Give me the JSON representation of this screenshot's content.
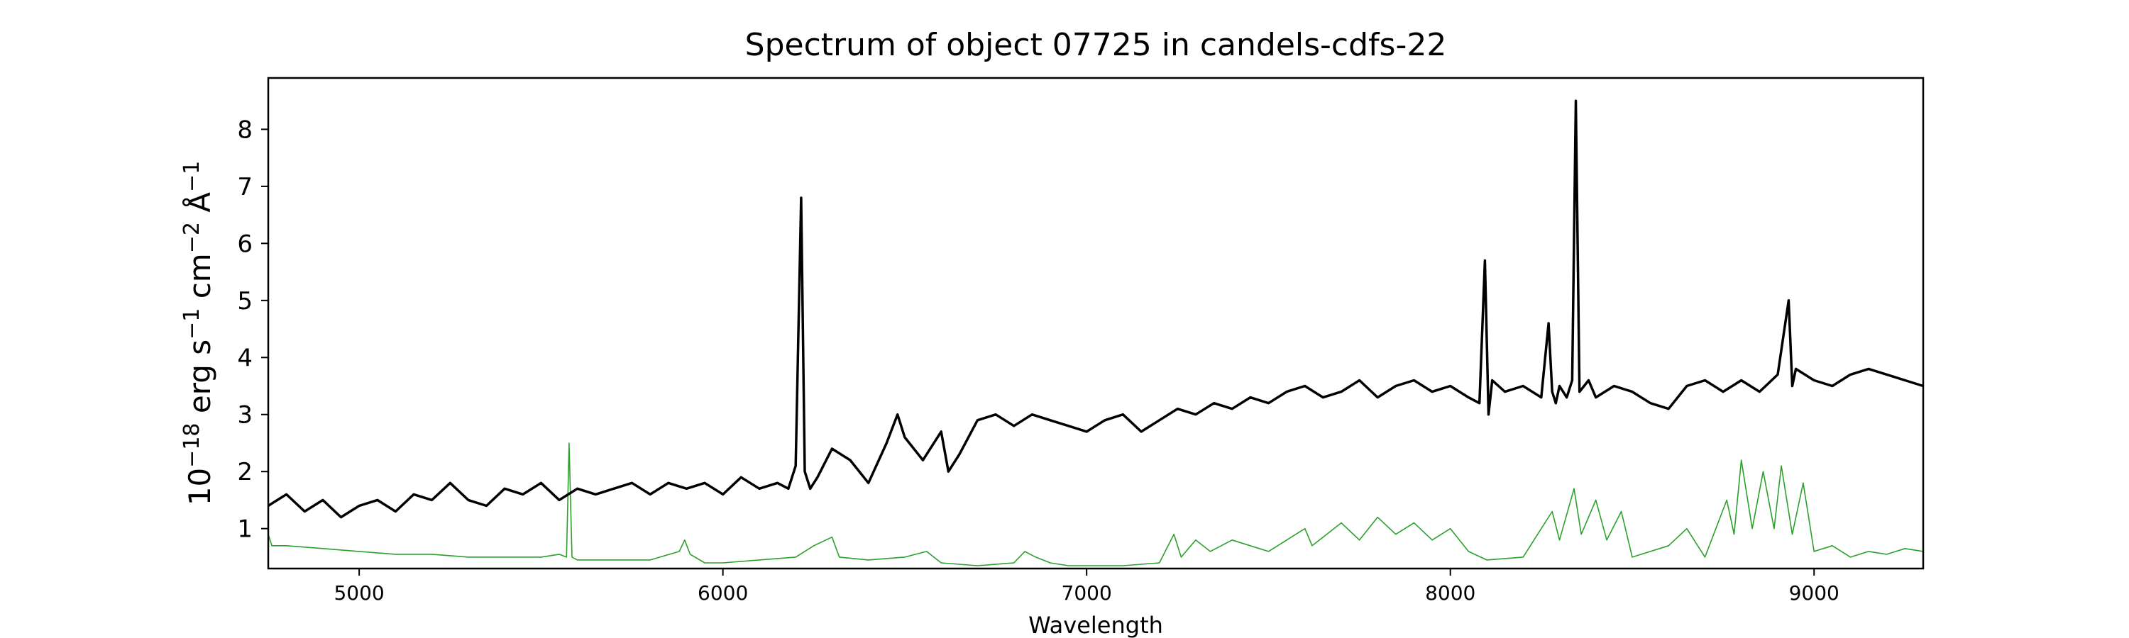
{
  "chart_data": {
    "type": "line",
    "title": "Spectrum of object 07725 in candels-cdfs-22",
    "xlabel": "Wavelength",
    "ylabel_base": "10",
    "ylabel_exp": "−18",
    "ylabel_unit_1": " erg s",
    "ylabel_exp_1": "−1",
    "ylabel_unit_2": " cm",
    "ylabel_exp_2": "−2",
    "ylabel_unit_3": " Å",
    "ylabel_exp_3": "−1",
    "xlim": [
      4750,
      9300
    ],
    "ylim": [
      0.3,
      8.9
    ],
    "xticks": [
      5000,
      6000,
      7000,
      8000,
      9000
    ],
    "yticks": [
      1,
      2,
      3,
      4,
      5,
      6,
      7,
      8
    ],
    "grid": false,
    "series": [
      {
        "role": "flux",
        "color": "#000000",
        "x": [
          4750,
          4800,
          4850,
          4900,
          4950,
          5000,
          5050,
          5100,
          5150,
          5200,
          5250,
          5300,
          5350,
          5400,
          5450,
          5500,
          5550,
          5600,
          5650,
          5700,
          5750,
          5800,
          5850,
          5900,
          5950,
          6000,
          6050,
          6100,
          6150,
          6180,
          6200,
          6215,
          6225,
          6240,
          6260,
          6300,
          6350,
          6400,
          6450,
          6480,
          6500,
          6550,
          6600,
          6620,
          6650,
          6700,
          6750,
          6800,
          6850,
          6900,
          6950,
          7000,
          7050,
          7100,
          7150,
          7200,
          7250,
          7300,
          7350,
          7400,
          7450,
          7500,
          7550,
          7600,
          7650,
          7700,
          7750,
          7800,
          7850,
          7900,
          7950,
          8000,
          8050,
          8080,
          8095,
          8105,
          8115,
          8150,
          8200,
          8250,
          8270,
          8280,
          8290,
          8300,
          8320,
          8335,
          8345,
          8355,
          8380,
          8400,
          8450,
          8500,
          8550,
          8600,
          8650,
          8700,
          8750,
          8800,
          8850,
          8900,
          8930,
          8940,
          8950,
          9000,
          9050,
          9100,
          9150,
          9200,
          9250,
          9300
        ],
        "y": [
          1.4,
          1.6,
          1.3,
          1.5,
          1.2,
          1.4,
          1.5,
          1.3,
          1.6,
          1.5,
          1.8,
          1.5,
          1.4,
          1.7,
          1.6,
          1.8,
          1.5,
          1.7,
          1.6,
          1.7,
          1.8,
          1.6,
          1.8,
          1.7,
          1.8,
          1.6,
          1.9,
          1.7,
          1.8,
          1.7,
          2.1,
          6.8,
          2.0,
          1.7,
          1.9,
          2.4,
          2.2,
          1.8,
          2.5,
          3.0,
          2.6,
          2.2,
          2.7,
          2.0,
          2.3,
          2.9,
          3.0,
          2.8,
          3.0,
          2.9,
          2.8,
          2.7,
          2.9,
          3.0,
          2.7,
          2.9,
          3.1,
          3.0,
          3.2,
          3.1,
          3.3,
          3.2,
          3.4,
          3.5,
          3.3,
          3.4,
          3.6,
          3.3,
          3.5,
          3.6,
          3.4,
          3.5,
          3.3,
          3.2,
          5.7,
          3.0,
          3.6,
          3.4,
          3.5,
          3.3,
          4.6,
          3.4,
          3.2,
          3.5,
          3.3,
          3.6,
          8.5,
          3.4,
          3.6,
          3.3,
          3.5,
          3.4,
          3.2,
          3.1,
          3.5,
          3.6,
          3.4,
          3.6,
          3.4,
          3.7,
          5.0,
          3.5,
          3.8,
          3.6,
          3.5,
          3.7,
          3.8,
          3.7,
          3.6,
          3.5
        ]
      },
      {
        "role": "sky",
        "color": "#2ca02c",
        "x": [
          4750,
          4760,
          4800,
          4900,
          5000,
          5100,
          5200,
          5300,
          5400,
          5500,
          5550,
          5570,
          5577,
          5585,
          5600,
          5700,
          5800,
          5880,
          5895,
          5910,
          5950,
          6000,
          6100,
          6200,
          6250,
          6300,
          6320,
          6400,
          6500,
          6560,
          6600,
          6700,
          6800,
          6830,
          6860,
          6900,
          6950,
          7000,
          7100,
          7200,
          7240,
          7260,
          7300,
          7340,
          7400,
          7500,
          7600,
          7620,
          7700,
          7750,
          7800,
          7850,
          7900,
          7950,
          8000,
          8050,
          8100,
          8200,
          8280,
          8300,
          8340,
          8360,
          8400,
          8430,
          8470,
          8500,
          8550,
          8600,
          8650,
          8700,
          8760,
          8780,
          8800,
          8830,
          8860,
          8890,
          8910,
          8940,
          8970,
          9000,
          9050,
          9100,
          9150,
          9200,
          9250,
          9300
        ],
        "y": [
          0.9,
          0.7,
          0.7,
          0.65,
          0.6,
          0.55,
          0.55,
          0.5,
          0.5,
          0.5,
          0.55,
          0.5,
          2.5,
          0.5,
          0.45,
          0.45,
          0.45,
          0.6,
          0.8,
          0.55,
          0.4,
          0.4,
          0.45,
          0.5,
          0.7,
          0.85,
          0.5,
          0.45,
          0.5,
          0.6,
          0.4,
          0.35,
          0.4,
          0.6,
          0.5,
          0.4,
          0.35,
          0.35,
          0.35,
          0.4,
          0.9,
          0.5,
          0.8,
          0.6,
          0.8,
          0.6,
          1.0,
          0.7,
          1.1,
          0.8,
          1.2,
          0.9,
          1.1,
          0.8,
          1.0,
          0.6,
          0.45,
          0.5,
          1.3,
          0.8,
          1.7,
          0.9,
          1.5,
          0.8,
          1.3,
          0.5,
          0.6,
          0.7,
          1.0,
          0.5,
          1.5,
          0.9,
          2.2,
          1.0,
          2.0,
          1.0,
          2.1,
          0.9,
          1.8,
          0.6,
          0.7,
          0.5,
          0.6,
          0.55,
          0.65,
          0.6
        ]
      }
    ]
  }
}
